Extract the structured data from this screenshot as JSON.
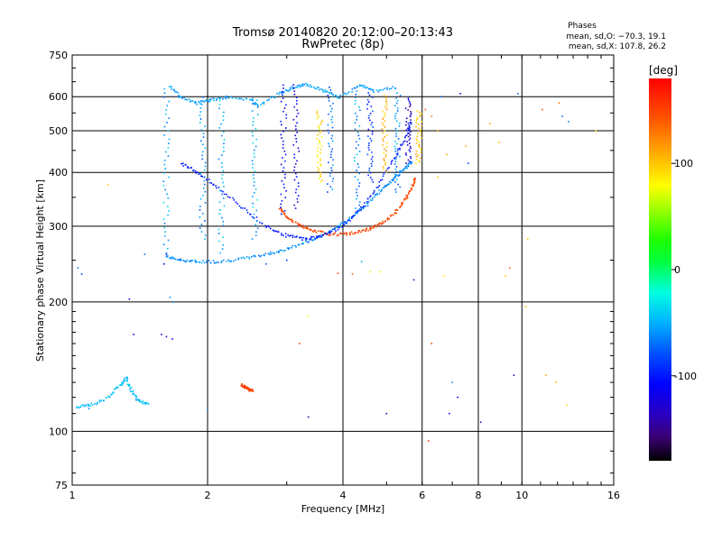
{
  "chart_data": {
    "type": "scatter",
    "title": "Tromsø 20140820 20:12:00–20:13:43",
    "subtitle": "RwPretec (8p)",
    "xlabel": "Frequency [MHz]",
    "ylabel": "Stationary phase Virtual Height [km]",
    "x_scale": "log",
    "y_scale": "log",
    "xlim": [
      1,
      16
    ],
    "ylim": [
      75,
      750
    ],
    "x_ticks": [
      {
        "v": 1,
        "label": "1"
      },
      {
        "v": 2,
        "label": "2"
      },
      {
        "v": 4,
        "label": "4"
      },
      {
        "v": 6,
        "label": "6"
      },
      {
        "v": 8,
        "label": "8"
      },
      {
        "v": 10,
        "label": "10"
      },
      {
        "v": 16,
        "label": "16"
      }
    ],
    "x_grid": [
      2,
      4,
      6,
      8,
      10
    ],
    "y_ticks": [
      {
        "v": 75,
        "label": "75"
      },
      {
        "v": 100,
        "label": "100"
      },
      {
        "v": 200,
        "label": "200"
      },
      {
        "v": 300,
        "label": "300"
      },
      {
        "v": 400,
        "label": "400"
      },
      {
        "v": 500,
        "label": "500"
      },
      {
        "v": 600,
        "label": "600"
      },
      {
        "v": 750,
        "label": "750"
      }
    ],
    "y_grid": [
      100,
      200,
      300,
      400,
      500,
      600
    ],
    "grid": true,
    "stats": {
      "heading": "Phases",
      "line1": "mean, sd,O: −70.3, 19.1",
      "line2": "mean, sd,X: 107.8, 26.2"
    },
    "colorbar": {
      "label": "[deg]",
      "range": [
        -180,
        180
      ],
      "ticks": [
        {
          "v": 100,
          "label": "100"
        },
        {
          "v": 0,
          "label": "0"
        },
        {
          "v": -100,
          "label": "-100"
        }
      ]
    },
    "traces": [
      {
        "name": "O-mode lower trace",
        "color_deg": -60,
        "points": [
          [
            1.62,
            255
          ],
          [
            1.75,
            250
          ],
          [
            1.9,
            248
          ],
          [
            2.1,
            248
          ],
          [
            2.4,
            252
          ],
          [
            2.7,
            258
          ],
          [
            3.0,
            265
          ],
          [
            3.3,
            275
          ],
          [
            3.6,
            285
          ],
          [
            3.9,
            300
          ],
          [
            4.2,
            315
          ],
          [
            4.5,
            335
          ],
          [
            4.8,
            360
          ],
          [
            5.1,
            380
          ],
          [
            5.3,
            395
          ],
          [
            5.5,
            410
          ],
          [
            5.7,
            425
          ]
        ]
      },
      {
        "name": "X-mode trace",
        "color_deg": 150,
        "points": [
          [
            2.9,
            330
          ],
          [
            3.0,
            315
          ],
          [
            3.2,
            302
          ],
          [
            3.4,
            293
          ],
          [
            3.7,
            288
          ],
          [
            4.0,
            287
          ],
          [
            4.3,
            290
          ],
          [
            4.6,
            296
          ],
          [
            4.9,
            305
          ],
          [
            5.2,
            320
          ],
          [
            5.5,
            345
          ],
          [
            5.7,
            370
          ],
          [
            5.8,
            390
          ]
        ]
      },
      {
        "name": "O-mode inner arc",
        "color_deg": -100,
        "points": [
          [
            1.75,
            420
          ],
          [
            1.9,
            400
          ],
          [
            2.1,
            370
          ],
          [
            2.4,
            330
          ],
          [
            2.7,
            300
          ],
          [
            3.0,
            285
          ],
          [
            3.3,
            280
          ],
          [
            3.6,
            285
          ],
          [
            4.0,
            300
          ],
          [
            4.4,
            330
          ],
          [
            4.8,
            375
          ],
          [
            5.2,
            430
          ],
          [
            5.5,
            480
          ],
          [
            5.7,
            530
          ]
        ]
      },
      {
        "name": "low E trace",
        "color_deg": -45,
        "points": [
          [
            1.02,
            114
          ],
          [
            1.1,
            115
          ],
          [
            1.2,
            120
          ],
          [
            1.28,
            128
          ],
          [
            1.32,
            133
          ],
          [
            1.35,
            125
          ],
          [
            1.4,
            118
          ],
          [
            1.48,
            115
          ]
        ]
      },
      {
        "name": "E cluster",
        "color_deg": 150,
        "points": [
          [
            2.38,
            128
          ],
          [
            2.42,
            127
          ],
          [
            2.45,
            126
          ],
          [
            2.48,
            125
          ],
          [
            2.52,
            124
          ]
        ]
      },
      {
        "name": "high F scatter",
        "color_deg": -55,
        "points": [
          [
            1.65,
            635
          ],
          [
            1.75,
            595
          ],
          [
            1.9,
            580
          ],
          [
            2.05,
            590
          ],
          [
            2.2,
            598
          ],
          [
            2.5,
            592
          ],
          [
            2.6,
            570
          ],
          [
            2.9,
            612
          ],
          [
            3.1,
            630
          ],
          [
            3.3,
            640
          ],
          [
            3.6,
            622
          ],
          [
            3.9,
            596
          ],
          [
            4.4,
            638
          ],
          [
            4.7,
            618
          ],
          [
            5.3,
            632
          ]
        ]
      }
    ],
    "vertical_streaks": [
      {
        "freq": 1.62,
        "from": 260,
        "to": 640,
        "color_deg": -50
      },
      {
        "freq": 1.95,
        "from": 280,
        "to": 610,
        "color_deg": -60
      },
      {
        "freq": 2.15,
        "from": 260,
        "to": 600,
        "color_deg": -50
      },
      {
        "freq": 2.55,
        "from": 280,
        "to": 600,
        "color_deg": -50
      },
      {
        "freq": 2.95,
        "from": 320,
        "to": 650,
        "color_deg": -110
      },
      {
        "freq": 3.15,
        "from": 330,
        "to": 650,
        "color_deg": -120
      },
      {
        "freq": 3.55,
        "from": 380,
        "to": 560,
        "color_deg": 90
      },
      {
        "freq": 3.75,
        "from": 360,
        "to": 640,
        "color_deg": -70
      },
      {
        "freq": 4.3,
        "from": 330,
        "to": 650,
        "color_deg": -60
      },
      {
        "freq": 4.6,
        "from": 380,
        "to": 620,
        "color_deg": -90
      },
      {
        "freq": 4.95,
        "from": 400,
        "to": 610,
        "color_deg": 105
      },
      {
        "freq": 5.3,
        "from": 360,
        "to": 620,
        "color_deg": -60
      },
      {
        "freq": 5.6,
        "from": 420,
        "to": 600,
        "color_deg": -130
      },
      {
        "freq": 5.9,
        "from": 420,
        "to": 560,
        "color_deg": 100
      }
    ],
    "points": [
      [
        1.03,
        240,
        -70
      ],
      [
        1.05,
        232,
        -80
      ],
      [
        1.2,
        375,
        100
      ],
      [
        1.34,
        203,
        -130
      ],
      [
        1.37,
        168,
        -130
      ],
      [
        1.58,
        168,
        -120
      ],
      [
        1.62,
        166,
        -120
      ],
      [
        1.67,
        164,
        -110
      ],
      [
        1.65,
        205,
        -60
      ],
      [
        1.68,
        200,
        -60
      ],
      [
        1.6,
        245,
        -120
      ],
      [
        1.62,
        258,
        -110
      ],
      [
        1.09,
        113,
        -60
      ],
      [
        2.0,
        112,
        -60
      ],
      [
        3.2,
        160,
        150
      ],
      [
        3.35,
        185,
        80
      ],
      [
        3.35,
        108,
        -140
      ],
      [
        4.6,
        235,
        90
      ],
      [
        4.85,
        235,
        80
      ],
      [
        5.0,
        110,
        -140
      ],
      [
        5.75,
        225,
        -140
      ],
      [
        6.2,
        95,
        150
      ],
      [
        6.3,
        160,
        150
      ],
      [
        6.5,
        390,
        100
      ],
      [
        6.7,
        230,
        90
      ],
      [
        6.9,
        110,
        -120
      ],
      [
        7.0,
        130,
        -60
      ],
      [
        7.2,
        120,
        -110
      ],
      [
        7.5,
        460,
        110
      ],
      [
        7.6,
        420,
        -80
      ],
      [
        8.1,
        105,
        -120
      ],
      [
        8.5,
        520,
        110
      ],
      [
        8.9,
        470,
        105
      ],
      [
        9.2,
        230,
        100
      ],
      [
        9.4,
        240,
        140
      ],
      [
        9.6,
        135,
        -120
      ],
      [
        9.8,
        610,
        -70
      ],
      [
        10.3,
        280,
        100
      ],
      [
        10.2,
        195,
        105
      ],
      [
        11.1,
        560,
        140
      ],
      [
        11.3,
        135,
        110
      ],
      [
        11.9,
        130,
        100
      ],
      [
        12.1,
        580,
        130
      ],
      [
        12.3,
        540,
        -70
      ],
      [
        12.6,
        115,
        90
      ],
      [
        12.7,
        525,
        -60
      ],
      [
        14.6,
        500,
        100
      ],
      [
        6.8,
        440,
        110
      ],
      [
        7.3,
        610,
        -120
      ],
      [
        6.6,
        600,
        -80
      ],
      [
        6.1,
        560,
        140
      ],
      [
        6.3,
        540,
        130
      ],
      [
        6.5,
        500,
        120
      ],
      [
        2.7,
        245,
        -80
      ],
      [
        3.0,
        250,
        -90
      ],
      [
        3.9,
        233,
        150
      ],
      [
        4.2,
        232,
        140
      ],
      [
        4.4,
        248,
        -50
      ],
      [
        1.45,
        258,
        -70
      ]
    ]
  }
}
